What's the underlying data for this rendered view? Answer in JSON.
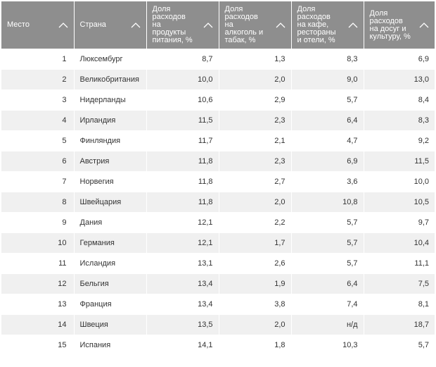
{
  "columns": [
    {
      "label": "Место"
    },
    {
      "label": "Страна"
    },
    {
      "label": "Доля\nрасходов\nна\nпродукты\nпитания, %"
    },
    {
      "label": "Доля\nрасходов\nна\nалкоголь и\nтабак, %"
    },
    {
      "label": "Доля\nрасходов\nна кафе,\nрестораны\nи отели, %"
    },
    {
      "label": "Доля\nрасходов\nна досуг и\nкультуру, %"
    }
  ],
  "rows": [
    {
      "rank": "1",
      "country": "Люксембург",
      "food": "8,7",
      "alcohol": "1,3",
      "cafe": "8,3",
      "leisure": "6,9"
    },
    {
      "rank": "2",
      "country": "Великобритания",
      "food": "10,0",
      "alcohol": "2,0",
      "cafe": "9,0",
      "leisure": "13,0"
    },
    {
      "rank": "3",
      "country": "Нидерланды",
      "food": "10,6",
      "alcohol": "2,9",
      "cafe": "5,7",
      "leisure": "8,4"
    },
    {
      "rank": "4",
      "country": "Ирландия",
      "food": "11,5",
      "alcohol": "2,3",
      "cafe": "6,4",
      "leisure": "8,3"
    },
    {
      "rank": "5",
      "country": "Финляндия",
      "food": "11,7",
      "alcohol": "2,1",
      "cafe": "4,7",
      "leisure": "9,2"
    },
    {
      "rank": "6",
      "country": "Австрия",
      "food": "11,8",
      "alcohol": "2,3",
      "cafe": "6,9",
      "leisure": "11,5"
    },
    {
      "rank": "7",
      "country": "Норвегия",
      "food": "11,8",
      "alcohol": "2,7",
      "cafe": "3,6",
      "leisure": "10,0"
    },
    {
      "rank": "8",
      "country": "Швейцария",
      "food": "11,8",
      "alcohol": "2,0",
      "cafe": "10,8",
      "leisure": "10,5"
    },
    {
      "rank": "9",
      "country": "Дания",
      "food": "12,1",
      "alcohol": "2,2",
      "cafe": "5,7",
      "leisure": "9,7"
    },
    {
      "rank": "10",
      "country": "Германия",
      "food": "12,1",
      "alcohol": "1,7",
      "cafe": "5,7",
      "leisure": "10,4"
    },
    {
      "rank": "11",
      "country": "Исландия",
      "food": "13,1",
      "alcohol": "2,6",
      "cafe": "5,7",
      "leisure": "11,1"
    },
    {
      "rank": "12",
      "country": "Бельгия",
      "food": "13,4",
      "alcohol": "1,9",
      "cafe": "6,4",
      "leisure": "7,5"
    },
    {
      "rank": "13",
      "country": "Франция",
      "food": "13,4",
      "alcohol": "3,8",
      "cafe": "7,4",
      "leisure": "8,1"
    },
    {
      "rank": "14",
      "country": "Швеция",
      "food": "13,5",
      "alcohol": "2,0",
      "cafe": "н/д",
      "leisure": "18,7"
    },
    {
      "rank": "15",
      "country": "Испания",
      "food": "14,1",
      "alcohol": "1,8",
      "cafe": "10,3",
      "leisure": "5,7"
    }
  ],
  "icons": {
    "sort": "chevron-up-icon"
  },
  "colors": {
    "header_bg": "#8e8e8e",
    "header_text": "#ffffff",
    "row_alt_bg": "#f0f0f0",
    "text": "#333333"
  }
}
